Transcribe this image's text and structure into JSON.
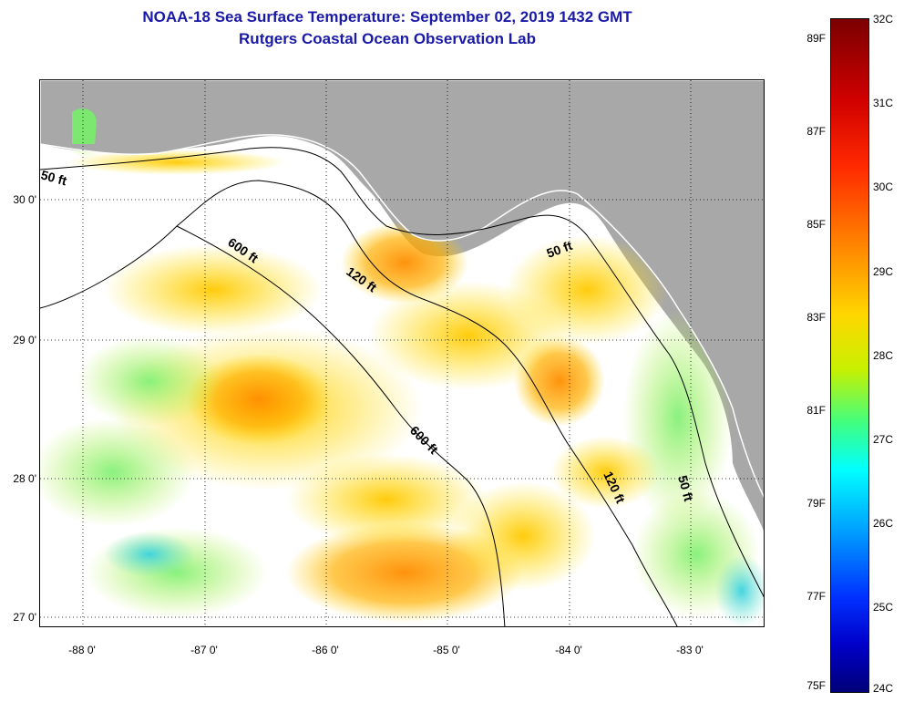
{
  "header": {
    "title": "NOAA-18 Sea Surface Temperature:  September 02, 2019 1432 GMT",
    "subtitle": "Rutgers Coastal Ocean Observation Lab"
  },
  "map": {
    "lat_labels": [
      "30 0'",
      "29 0'",
      "28 0'",
      "27 0'"
    ],
    "lon_labels": [
      "-88 0'",
      "-87 0'",
      "-86 0'",
      "-85 0'",
      "-84 0'",
      "-83 0'"
    ],
    "isobath_labels": [
      "50 ft",
      "600 ft",
      "120 ft",
      "50 ft",
      "600 ft",
      "120 ft",
      "50 ft"
    ],
    "colors": {
      "land": "#a8a8a8",
      "nodata": "#ffffff",
      "contour": "#000000"
    }
  },
  "colorbar": {
    "fahrenheit_labels": [
      "89F",
      "87F",
      "85F",
      "83F",
      "81F",
      "79F",
      "77F",
      "75F"
    ],
    "celsius_labels": [
      "32C",
      "31C",
      "30C",
      "29C",
      "28C",
      "27C",
      "26C",
      "25C",
      "24C"
    ]
  }
}
